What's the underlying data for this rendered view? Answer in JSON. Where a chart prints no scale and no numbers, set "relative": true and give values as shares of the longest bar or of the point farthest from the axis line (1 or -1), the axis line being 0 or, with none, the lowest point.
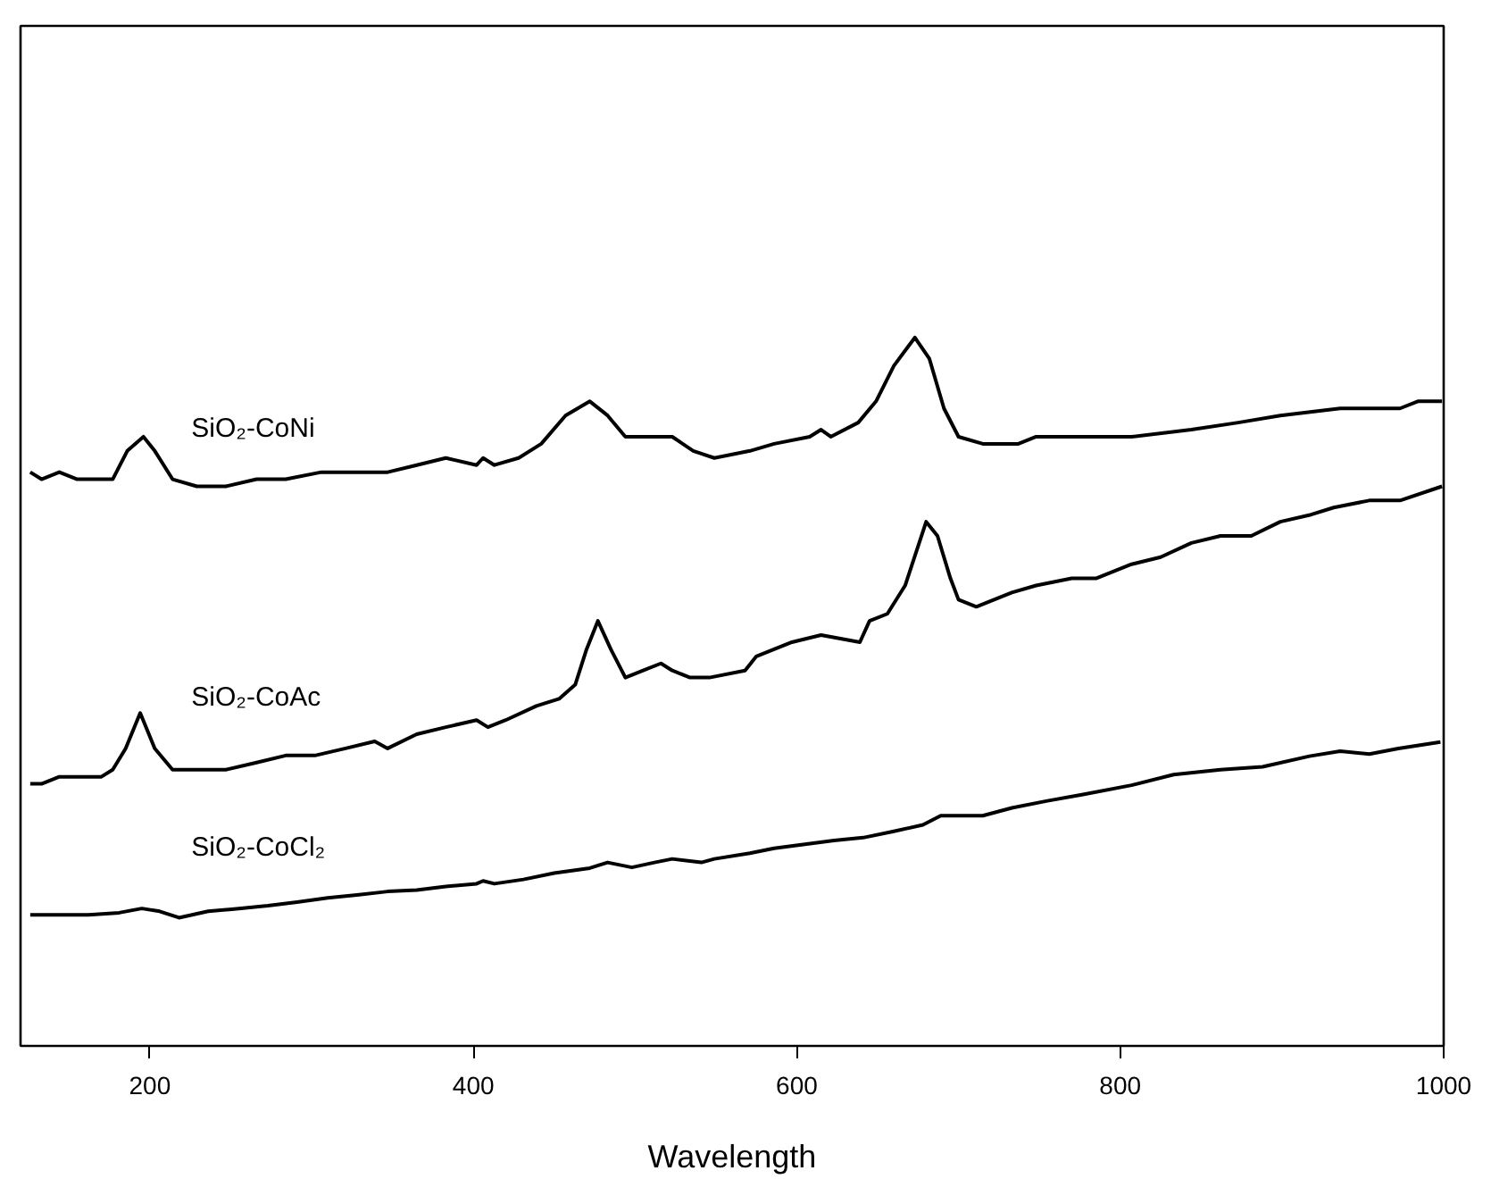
{
  "chart_data": {
    "type": "line",
    "xlabel": "Wavelength",
    "relative": true,
    "xlim": [
      120,
      1000
    ],
    "xticks": [
      200,
      400,
      600,
      800,
      1000
    ],
    "grid": false,
    "marker": "none",
    "line_style": "solid",
    "series": [
      {
        "name": "SiO₂-CoNi",
        "color": "#000000",
        "x": [
          126,
          133,
          144,
          155,
          166,
          177,
          186,
          196,
          203,
          214,
          229,
          247,
          266,
          284,
          306,
          328,
          347,
          365,
          383,
          402,
          406,
          413,
          428,
          442,
          457,
          472,
          483,
          494,
          501,
          512,
          523,
          536,
          549,
          571,
          586,
          608,
          615,
          621,
          638,
          649,
          660,
          673,
          682,
          691,
          700,
          715,
          737,
          748,
          770,
          807,
          844,
          873,
          899,
          936,
          954,
          973,
          984,
          999
        ],
        "values": [
          0.81,
          0.8,
          0.81,
          0.8,
          0.8,
          0.8,
          0.84,
          0.86,
          0.84,
          0.8,
          0.79,
          0.79,
          0.8,
          0.8,
          0.81,
          0.81,
          0.81,
          0.82,
          0.83,
          0.82,
          0.83,
          0.82,
          0.83,
          0.85,
          0.89,
          0.91,
          0.89,
          0.86,
          0.86,
          0.86,
          0.86,
          0.84,
          0.83,
          0.84,
          0.85,
          0.86,
          0.87,
          0.86,
          0.88,
          0.91,
          0.96,
          1.0,
          0.97,
          0.9,
          0.86,
          0.85,
          0.85,
          0.86,
          0.86,
          0.86,
          0.87,
          0.88,
          0.89,
          0.9,
          0.9,
          0.9,
          0.91,
          0.91
        ]
      },
      {
        "name": "SiO₂-CoAc",
        "color": "#000000",
        "x": [
          126,
          133,
          144,
          159,
          170,
          177,
          185,
          194,
          203,
          214,
          232,
          247,
          266,
          284,
          302,
          321,
          339,
          347,
          365,
          383,
          402,
          409,
          420,
          439,
          453,
          463,
          470,
          477,
          485,
          494,
          505,
          516,
          523,
          534,
          546,
          568,
          575,
          597,
          615,
          639,
          645,
          656,
          667,
          680,
          687,
          695,
          700,
          711,
          733,
          748,
          770,
          785,
          807,
          825,
          844,
          862,
          881,
          899,
          918,
          932,
          954,
          973,
          999
        ],
        "values": [
          0.37,
          0.37,
          0.38,
          0.38,
          0.38,
          0.39,
          0.42,
          0.47,
          0.42,
          0.39,
          0.39,
          0.39,
          0.4,
          0.41,
          0.41,
          0.42,
          0.43,
          0.42,
          0.44,
          0.45,
          0.46,
          0.45,
          0.46,
          0.48,
          0.49,
          0.51,
          0.56,
          0.6,
          0.56,
          0.52,
          0.53,
          0.54,
          0.53,
          0.52,
          0.52,
          0.53,
          0.55,
          0.57,
          0.58,
          0.57,
          0.6,
          0.61,
          0.65,
          0.74,
          0.72,
          0.66,
          0.63,
          0.62,
          0.64,
          0.65,
          0.66,
          0.66,
          0.68,
          0.69,
          0.71,
          0.72,
          0.72,
          0.74,
          0.75,
          0.76,
          0.77,
          0.77,
          0.79
        ]
      },
      {
        "name": "SiO₂-CoCl₂",
        "color": "#000000",
        "x": [
          126,
          144,
          162,
          181,
          195,
          206,
          218,
          236,
          255,
          273,
          291,
          310,
          328,
          347,
          365,
          383,
          402,
          406,
          413,
          431,
          450,
          472,
          483,
          498,
          512,
          523,
          541,
          549,
          571,
          586,
          623,
          641,
          660,
          678,
          689,
          715,
          733,
          755,
          777,
          807,
          833,
          862,
          888,
          917,
          936,
          954,
          972,
          998
        ],
        "values": [
          0.185,
          0.185,
          0.185,
          0.188,
          0.194,
          0.19,
          0.181,
          0.19,
          0.194,
          0.198,
          0.203,
          0.209,
          0.213,
          0.218,
          0.22,
          0.225,
          0.229,
          0.233,
          0.229,
          0.235,
          0.244,
          0.251,
          0.259,
          0.252,
          0.259,
          0.264,
          0.259,
          0.264,
          0.272,
          0.279,
          0.29,
          0.294,
          0.303,
          0.312,
          0.325,
          0.325,
          0.336,
          0.346,
          0.355,
          0.368,
          0.383,
          0.39,
          0.394,
          0.409,
          0.416,
          0.412,
          0.42,
          0.429
        ]
      }
    ]
  }
}
